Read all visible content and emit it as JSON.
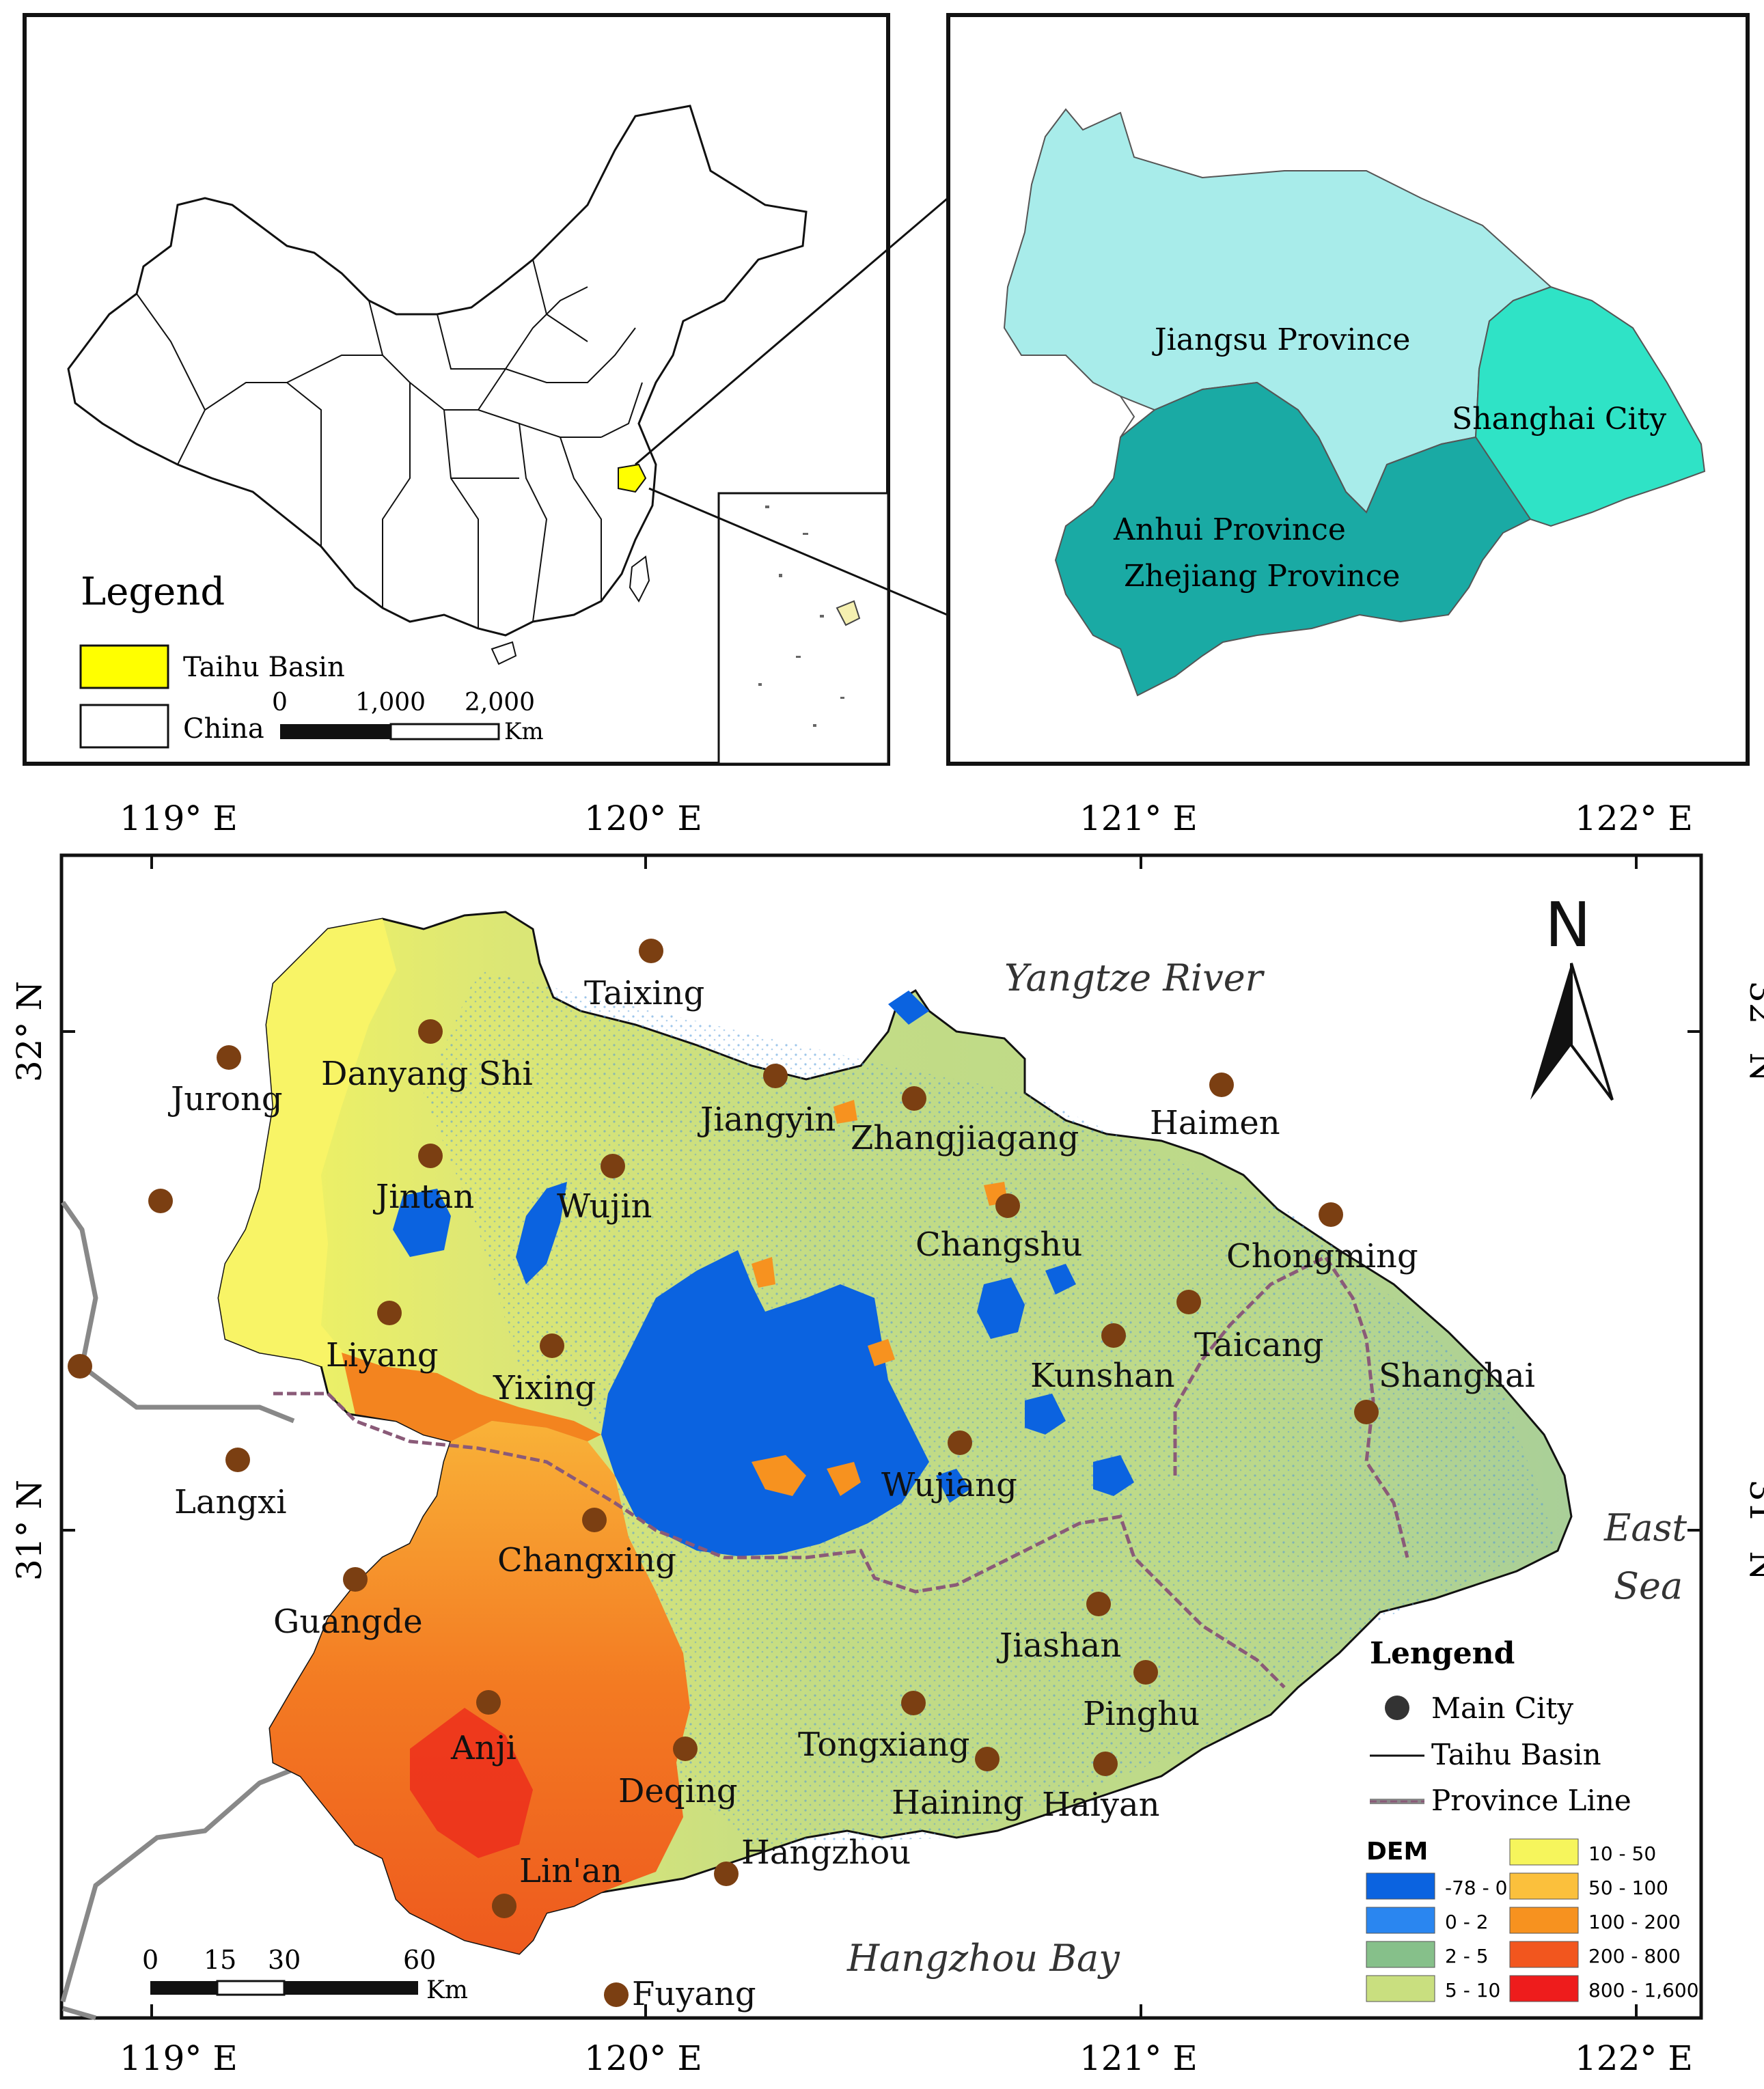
{
  "inset_china": {
    "legend_title": "Legend",
    "legend_items": [
      {
        "label": "Taihu Basin",
        "color": "#ffff00"
      },
      {
        "label": "China",
        "color": "#ffffff"
      }
    ],
    "scale": {
      "ticks": [
        "0",
        "1,000",
        "2,000"
      ],
      "unit": "Km"
    }
  },
  "inset_region": {
    "labels": [
      "Jiangsu Province",
      "Shanghai City",
      "Anhui Province",
      "Zhejiang Province"
    ],
    "colors": {
      "jiangsu": "#a8ecea",
      "shanghai": "#2fe3c6",
      "south": "#1aaaa4"
    }
  },
  "main_map": {
    "lon_labels": [
      "119° E",
      "120° E",
      "121° E",
      "122° E"
    ],
    "lat_labels": [
      "32° N",
      "31° N"
    ],
    "north_label": "N",
    "water_labels": [
      "Yangtze River",
      "East",
      "Sea",
      "Hangzhou Bay"
    ],
    "cities": [
      "Taixing",
      "Danyang Shi",
      "Jurong",
      "Jiangyin",
      "Zhangjiagang",
      "Haimen",
      "Jintan",
      "Wujin",
      "Changshu",
      "Chongming",
      "Liyang",
      "Yixing",
      "Taicang",
      "Kunshan",
      "Shanghai",
      "Langxi",
      "Wujiang",
      "Changxing",
      "Guangde",
      "Jiashan",
      "Pinghu",
      "Anji",
      "Tongxiang",
      "Deqing",
      "Haining",
      "Haiyan",
      "Hangzhou",
      "Lin'an",
      "Fuyang"
    ],
    "city_color": "#7b3f12",
    "legend": {
      "title": "Lengend",
      "items": [
        "Main City",
        "Taihu Basin",
        "Province Line"
      ],
      "dem_title": "DEM",
      "dem_classes": [
        {
          "label": "-78 - 0",
          "color": "#0b63e0"
        },
        {
          "label": "0 - 2",
          "color": "#2a86f0"
        },
        {
          "label": "2 - 5",
          "color": "#86c08a"
        },
        {
          "label": "5 - 10",
          "color": "#c9df7f"
        },
        {
          "label": "10 - 50",
          "color": "#f6f55c"
        },
        {
          "label": "50 - 100",
          "color": "#fbc03c"
        },
        {
          "label": "100 - 200",
          "color": "#f7921f"
        },
        {
          "label": "200 - 800",
          "color": "#f2561e"
        },
        {
          "label": "800 - 1,600",
          "color": "#ee1c1c"
        }
      ]
    },
    "scale": {
      "ticks": [
        "0",
        "15",
        "30",
        "60"
      ],
      "unit": "Km"
    }
  }
}
